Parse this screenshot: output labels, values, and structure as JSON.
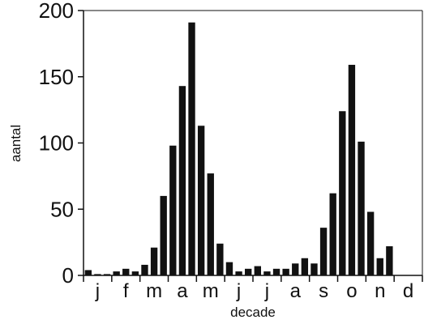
{
  "chart_data": {
    "type": "bar",
    "xlabel": "decade",
    "ylabel": "aantal",
    "ylim": [
      0,
      200
    ],
    "yticks": [
      0,
      50,
      100,
      150,
      200
    ],
    "month_labels": [
      "j",
      "f",
      "m",
      "a",
      "m",
      "j",
      "j",
      "a",
      "s",
      "o",
      "n",
      "d"
    ],
    "values": [
      4,
      1,
      1,
      3,
      5,
      3,
      8,
      21,
      60,
      98,
      143,
      191,
      113,
      77,
      24,
      10,
      3,
      5,
      7,
      3,
      5,
      5,
      9,
      13,
      9,
      36,
      62,
      124,
      159,
      101,
      48,
      13,
      22,
      0,
      0,
      0
    ],
    "bar_color": "#111111",
    "grid": false,
    "legend": "none"
  }
}
